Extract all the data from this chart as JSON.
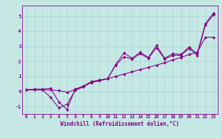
{
  "title": "",
  "xlabel": "Windchill (Refroidissement éolien,°C)",
  "ylabel": "",
  "xlim": [
    -0.5,
    23.5
  ],
  "ylim": [
    -1.5,
    5.7
  ],
  "xticks": [
    0,
    1,
    2,
    3,
    4,
    5,
    6,
    7,
    8,
    9,
    10,
    11,
    12,
    13,
    14,
    15,
    16,
    17,
    18,
    19,
    20,
    21,
    22,
    23
  ],
  "yticks": [
    -1,
    0,
    1,
    2,
    3,
    4,
    5
  ],
  "background_color": "#c5e8e5",
  "grid_color": "#a8d4d0",
  "line_color": "#880088",
  "series": [
    [
      0.1,
      0.15,
      0.15,
      0.2,
      -0.7,
      -1.2,
      0.15,
      0.35,
      0.65,
      0.75,
      0.85,
      1.8,
      2.55,
      2.2,
      2.6,
      2.25,
      3.05,
      2.2,
      2.5,
      2.45,
      2.95,
      2.5,
      4.5,
      5.2
    ],
    [
      0.1,
      0.1,
      0.1,
      -0.4,
      -1.1,
      -0.85,
      0.05,
      0.3,
      0.6,
      0.7,
      0.85,
      1.75,
      2.3,
      2.15,
      2.5,
      2.2,
      2.9,
      2.15,
      2.4,
      2.4,
      2.85,
      2.4,
      4.4,
      5.1
    ],
    [
      0.1,
      0.1,
      0.1,
      0.1,
      0.05,
      -0.05,
      0.1,
      0.35,
      0.6,
      0.75,
      0.85,
      1.0,
      1.15,
      1.3,
      1.45,
      1.6,
      1.75,
      1.9,
      2.1,
      2.25,
      2.45,
      2.6,
      3.6,
      3.6
    ]
  ],
  "marker": "D",
  "markersize": 2.0,
  "linewidth": 0.8,
  "xlabel_fontsize": 5.5,
  "tick_fontsize": 4.8
}
